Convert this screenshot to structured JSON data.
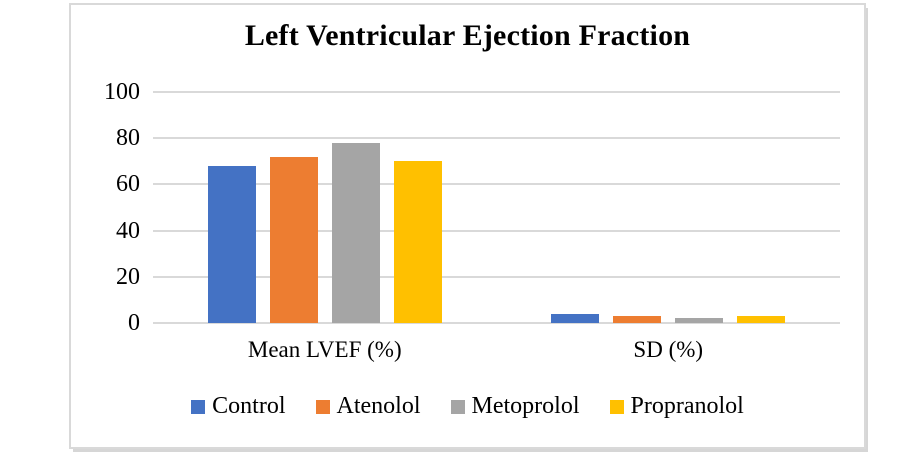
{
  "chart_data": {
    "type": "bar",
    "title": "Left Ventricular Ejection Fraction",
    "categories": [
      "Mean LVEF (%)",
      "SD (%)"
    ],
    "series": [
      {
        "name": "Control",
        "color": "#4472C4",
        "values": [
          68,
          4
        ]
      },
      {
        "name": "Atenolol",
        "color": "#ED7D31",
        "values": [
          72,
          3
        ]
      },
      {
        "name": "Metoprolol",
        "color": "#A5A5A5",
        "values": [
          78,
          2
        ]
      },
      {
        "name": "Propranolol",
        "color": "#FFC000",
        "values": [
          70,
          3
        ]
      }
    ],
    "ylim": [
      0,
      100
    ],
    "yticks": [
      0,
      20,
      40,
      60,
      80,
      100
    ],
    "grid": true,
    "legend_position": "bottom",
    "gridline_color": "#D9D9D9",
    "frame_border_color": "#D9D9D9",
    "text_color": "#000000",
    "background_color": "#FFFFFF"
  }
}
